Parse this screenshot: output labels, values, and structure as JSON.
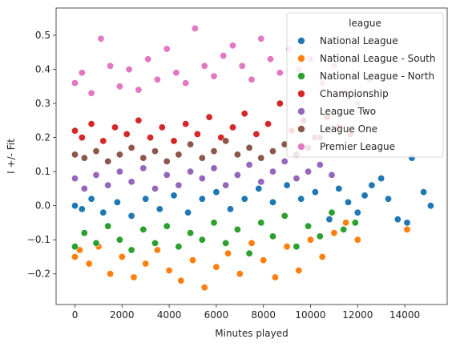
{
  "chart_data": {
    "type": "scatter",
    "title": "",
    "xlabel": "Minutes played",
    "ylabel": "I +/- Fit",
    "xlim": [
      -800,
      15800
    ],
    "ylim": [
      -0.29,
      0.58
    ],
    "xticks": [
      0,
      2000,
      4000,
      6000,
      8000,
      10000,
      12000,
      14000
    ],
    "xtick_labels": [
      "0",
      "2000",
      "4000",
      "6000",
      "8000",
      "10000",
      "12000",
      "14000"
    ],
    "yticks": [
      -0.2,
      -0.1,
      0.0,
      0.1,
      0.2,
      0.3,
      0.4,
      0.5
    ],
    "ytick_labels": [
      "−0.2",
      "−0.1",
      "0.0",
      "0.1",
      "0.2",
      "0.3",
      "0.4",
      "0.5"
    ],
    "grid": false,
    "legend": {
      "title": "league",
      "placement": "top-right"
    },
    "series": [
      {
        "name": "National League",
        "color": "#1f77b4",
        "points": [
          [
            0,
            0.0
          ],
          [
            300,
            -0.01
          ],
          [
            700,
            0.02
          ],
          [
            1200,
            -0.02
          ],
          [
            1800,
            0.01
          ],
          [
            2400,
            -0.03
          ],
          [
            3000,
            0.02
          ],
          [
            3600,
            -0.01
          ],
          [
            4200,
            0.03
          ],
          [
            4800,
            -0.02
          ],
          [
            5400,
            0.02
          ],
          [
            6000,
            0.04
          ],
          [
            6600,
            -0.01
          ],
          [
            7200,
            0.02
          ],
          [
            7800,
            0.05
          ],
          [
            8400,
            0.01
          ],
          [
            9000,
            0.06
          ],
          [
            9600,
            0.02
          ],
          [
            10200,
            0.04
          ],
          [
            10800,
            -0.04
          ],
          [
            11200,
            0.05
          ],
          [
            11600,
            0.01
          ],
          [
            12000,
            -0.02
          ],
          [
            12300,
            0.03
          ],
          [
            12600,
            0.06
          ],
          [
            13000,
            0.08
          ],
          [
            13300,
            0.02
          ],
          [
            13700,
            -0.04
          ],
          [
            14100,
            -0.05
          ],
          [
            14300,
            0.14
          ],
          [
            14800,
            0.04
          ],
          [
            15100,
            0.0
          ]
        ]
      },
      {
        "name": "National League - South",
        "color": "#ff7f0e",
        "points": [
          [
            0,
            -0.15
          ],
          [
            200,
            -0.13
          ],
          [
            600,
            -0.17
          ],
          [
            1000,
            -0.12
          ],
          [
            1500,
            -0.2
          ],
          [
            2000,
            -0.15
          ],
          [
            2500,
            -0.21
          ],
          [
            3000,
            -0.17
          ],
          [
            3500,
            -0.13
          ],
          [
            4000,
            -0.19
          ],
          [
            4500,
            -0.22
          ],
          [
            5000,
            -0.16
          ],
          [
            5500,
            -0.24
          ],
          [
            6000,
            -0.18
          ],
          [
            6500,
            -0.14
          ],
          [
            7000,
            -0.2
          ],
          [
            7500,
            -0.11
          ],
          [
            8000,
            -0.16
          ],
          [
            8500,
            -0.21
          ],
          [
            9000,
            -0.12
          ],
          [
            9500,
            -0.19
          ],
          [
            10000,
            -0.1
          ],
          [
            10500,
            -0.15
          ],
          [
            11000,
            -0.08
          ],
          [
            11500,
            -0.05
          ],
          [
            12000,
            -0.1
          ],
          [
            14100,
            -0.07
          ]
        ]
      },
      {
        "name": "National League - North",
        "color": "#2ca02c",
        "points": [
          [
            0,
            -0.12
          ],
          [
            400,
            -0.08
          ],
          [
            900,
            -0.11
          ],
          [
            1400,
            -0.06
          ],
          [
            1900,
            -0.1
          ],
          [
            2400,
            -0.13
          ],
          [
            2900,
            -0.07
          ],
          [
            3400,
            -0.11
          ],
          [
            3900,
            -0.06
          ],
          [
            4400,
            -0.12
          ],
          [
            4900,
            -0.08
          ],
          [
            5400,
            -0.1
          ],
          [
            5900,
            -0.05
          ],
          [
            6400,
            -0.11
          ],
          [
            6900,
            -0.07
          ],
          [
            7400,
            -0.14
          ],
          [
            7900,
            -0.05
          ],
          [
            8400,
            -0.09
          ],
          [
            8900,
            -0.03
          ],
          [
            9400,
            -0.12
          ],
          [
            9900,
            -0.06
          ],
          [
            10400,
            -0.09
          ],
          [
            10900,
            -0.02
          ],
          [
            11400,
            -0.07
          ],
          [
            11900,
            -0.05
          ]
        ]
      },
      {
        "name": "Championship",
        "color": "#d62728",
        "points": [
          [
            0,
            0.22
          ],
          [
            300,
            0.2
          ],
          [
            700,
            0.24
          ],
          [
            1200,
            0.19
          ],
          [
            1700,
            0.23
          ],
          [
            2200,
            0.21
          ],
          [
            2700,
            0.25
          ],
          [
            3200,
            0.2
          ],
          [
            3700,
            0.23
          ],
          [
            4200,
            0.19
          ],
          [
            4700,
            0.24
          ],
          [
            5200,
            0.21
          ],
          [
            5700,
            0.26
          ],
          [
            6200,
            0.2
          ],
          [
            6700,
            0.23
          ],
          [
            7200,
            0.27
          ],
          [
            7700,
            0.21
          ],
          [
            8200,
            0.24
          ],
          [
            8700,
            0.3
          ],
          [
            9200,
            0.22
          ],
          [
            9700,
            0.25
          ],
          [
            10200,
            0.2
          ],
          [
            10700,
            0.26
          ],
          [
            11200,
            0.23
          ],
          [
            11700,
            0.21
          ]
        ]
      },
      {
        "name": "League Two",
        "color": "#9467bd",
        "points": [
          [
            0,
            0.08
          ],
          [
            400,
            0.05
          ],
          [
            900,
            0.09
          ],
          [
            1400,
            0.06
          ],
          [
            1900,
            0.1
          ],
          [
            2400,
            0.07
          ],
          [
            2900,
            0.11
          ],
          [
            3400,
            0.05
          ],
          [
            3900,
            0.09
          ],
          [
            4400,
            0.06
          ],
          [
            4900,
            0.1
          ],
          [
            5400,
            0.08
          ],
          [
            5900,
            0.11
          ],
          [
            6400,
            0.06
          ],
          [
            6900,
            0.09
          ],
          [
            7400,
            0.12
          ],
          [
            7900,
            0.07
          ],
          [
            8400,
            0.1
          ],
          [
            8900,
            0.13
          ],
          [
            9400,
            0.08
          ],
          [
            9900,
            0.1
          ],
          [
            10400,
            0.12
          ],
          [
            10900,
            0.09
          ]
        ]
      },
      {
        "name": "League One",
        "color": "#8c564b",
        "points": [
          [
            0,
            0.15
          ],
          [
            400,
            0.14
          ],
          [
            900,
            0.16
          ],
          [
            1400,
            0.13
          ],
          [
            1900,
            0.15
          ],
          [
            2400,
            0.17
          ],
          [
            2900,
            0.14
          ],
          [
            3400,
            0.16
          ],
          [
            3900,
            0.13
          ],
          [
            4400,
            0.15
          ],
          [
            4900,
            0.18
          ],
          [
            5400,
            0.14
          ],
          [
            5900,
            0.16
          ],
          [
            6400,
            0.19
          ],
          [
            6900,
            0.15
          ],
          [
            7400,
            0.17
          ],
          [
            7900,
            0.14
          ],
          [
            8400,
            0.16
          ],
          [
            8900,
            0.18
          ],
          [
            9400,
            0.15
          ],
          [
            9900,
            0.17
          ],
          [
            10400,
            0.2
          ]
        ]
      },
      {
        "name": "Premier League",
        "color": "#e377c2",
        "points": [
          [
            0,
            0.36
          ],
          [
            300,
            0.39
          ],
          [
            700,
            0.33
          ],
          [
            1100,
            0.49
          ],
          [
            1500,
            0.41
          ],
          [
            1900,
            0.35
          ],
          [
            2300,
            0.4
          ],
          [
            2700,
            0.34
          ],
          [
            3100,
            0.43
          ],
          [
            3500,
            0.37
          ],
          [
            3900,
            0.46
          ],
          [
            4300,
            0.39
          ],
          [
            4700,
            0.36
          ],
          [
            5100,
            0.52
          ],
          [
            5500,
            0.41
          ],
          [
            5900,
            0.38
          ],
          [
            6300,
            0.44
          ],
          [
            6700,
            0.47
          ],
          [
            7100,
            0.41
          ],
          [
            7500,
            0.37
          ],
          [
            7900,
            0.49
          ],
          [
            8300,
            0.43
          ],
          [
            8700,
            0.39
          ],
          [
            9100,
            0.46
          ],
          [
            9500,
            0.4
          ],
          [
            10000,
            0.43
          ],
          [
            10500,
            0.36
          ],
          [
            11000,
            0.41
          ],
          [
            11500,
            0.33
          ],
          [
            12000,
            0.3
          ],
          [
            12500,
            0.37
          ]
        ]
      }
    ]
  }
}
